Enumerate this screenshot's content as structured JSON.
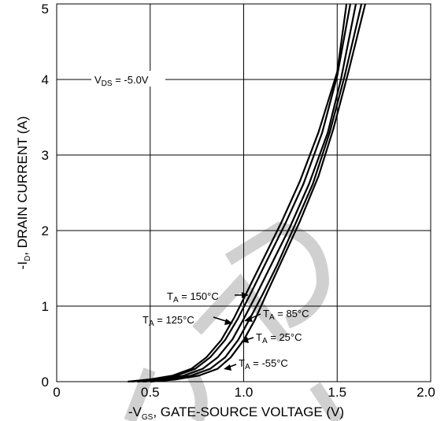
{
  "chart_data": {
    "type": "line",
    "xlabel": {
      "prefix": "-V",
      "sub": "GS",
      "suffix": ", GATE-SOURCE VOLTAGE (V)"
    },
    "ylabel": {
      "prefix": "-I",
      "sub": "D",
      "suffix": ", DRAIN CURRENT (A)"
    },
    "xlim": [
      0,
      2.0
    ],
    "ylim": [
      0,
      5
    ],
    "x_ticks": [
      {
        "value": 0,
        "label": "0"
      },
      {
        "value": 0.5,
        "label": "0.5"
      },
      {
        "value": 1.0,
        "label": "1.0"
      },
      {
        "value": 1.5,
        "label": "1.5"
      },
      {
        "value": 2.0,
        "label": "2.0"
      }
    ],
    "y_ticks": [
      {
        "value": 0,
        "label": "0"
      },
      {
        "value": 1,
        "label": "1"
      },
      {
        "value": 2,
        "label": "2"
      },
      {
        "value": 3,
        "label": "3"
      },
      {
        "value": 4,
        "label": "4"
      },
      {
        "value": 5,
        "label": "5"
      }
    ],
    "grid": true,
    "condition_label": {
      "prefix": "V",
      "sub": "DS",
      "suffix": " = -5.0V"
    },
    "series": [
      {
        "name_prefix": "T",
        "name_sub": "A",
        "name_suffix": " = 150°C",
        "x": [
          0.38,
          0.5,
          0.62,
          0.72,
          0.8,
          0.88,
          0.95,
          1.02,
          1.1,
          1.2,
          1.3,
          1.4,
          1.5,
          1.55
        ],
        "y": [
          0.0,
          0.03,
          0.08,
          0.17,
          0.32,
          0.55,
          0.85,
          1.2,
          1.6,
          2.1,
          2.65,
          3.3,
          4.1,
          5.0
        ]
      },
      {
        "name_prefix": "T",
        "name_sub": "A",
        "name_suffix": " = 125°C",
        "x": [
          0.4,
          0.52,
          0.64,
          0.74,
          0.82,
          0.9,
          0.97,
          1.04,
          1.12,
          1.22,
          1.32,
          1.42,
          1.5,
          1.57
        ],
        "y": [
          0.0,
          0.03,
          0.08,
          0.17,
          0.32,
          0.55,
          0.84,
          1.18,
          1.58,
          2.08,
          2.62,
          3.3,
          4.05,
          5.0
        ]
      },
      {
        "name_prefix": "T",
        "name_sub": "A",
        "name_suffix": " = 85°C",
        "x": [
          0.43,
          0.56,
          0.68,
          0.78,
          0.86,
          0.94,
          1.0,
          1.07,
          1.15,
          1.25,
          1.35,
          1.45,
          1.52,
          1.6
        ],
        "y": [
          0.0,
          0.03,
          0.08,
          0.17,
          0.32,
          0.56,
          0.83,
          1.16,
          1.56,
          2.06,
          2.62,
          3.3,
          4.0,
          5.0
        ]
      },
      {
        "name_prefix": "T",
        "name_sub": "A",
        "name_suffix": " = 25°C",
        "x": [
          0.46,
          0.6,
          0.72,
          0.82,
          0.9,
          0.97,
          1.03,
          1.1,
          1.18,
          1.27,
          1.37,
          1.46,
          1.54,
          1.63
        ],
        "y": [
          0.0,
          0.03,
          0.08,
          0.17,
          0.32,
          0.55,
          0.82,
          1.15,
          1.55,
          2.05,
          2.62,
          3.3,
          4.05,
          5.0
        ]
      },
      {
        "name_prefix": "T",
        "name_sub": "A",
        "name_suffix": " = -55°C",
        "x": [
          0.5,
          0.64,
          0.76,
          0.86,
          0.93,
          1.0,
          1.06,
          1.12,
          1.2,
          1.3,
          1.4,
          1.48,
          1.56,
          1.65
        ],
        "y": [
          0.0,
          0.03,
          0.08,
          0.17,
          0.32,
          0.55,
          0.82,
          1.15,
          1.58,
          2.12,
          2.72,
          3.35,
          4.1,
          5.0
        ]
      }
    ]
  }
}
